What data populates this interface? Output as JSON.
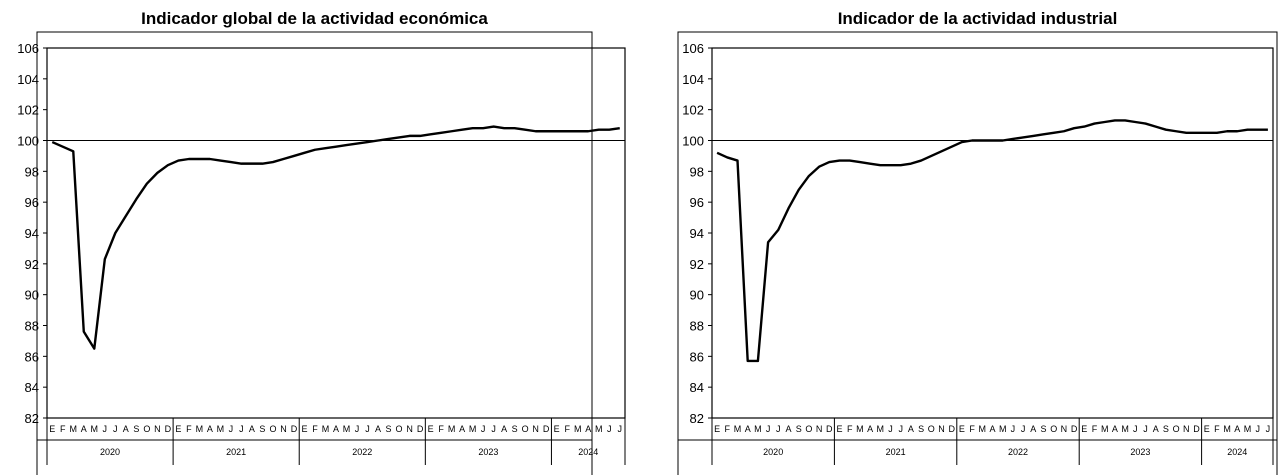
{
  "chart_data": [
    {
      "type": "line",
      "title": "Indicador global de la actividad económica",
      "xlabel": "",
      "ylabel": "",
      "ylim": [
        82,
        106
      ],
      "yticks": [
        "106",
        "104",
        "102",
        "100",
        "98",
        "96",
        "94",
        "92",
        "90",
        "88",
        "86",
        "84",
        "82"
      ],
      "reference_line": 100,
      "grid": false,
      "months": [
        "E",
        "F",
        "M",
        "A",
        "M",
        "J",
        "J",
        "A",
        "S",
        "O",
        "N",
        "D",
        "E",
        "F",
        "M",
        "A",
        "M",
        "J",
        "J",
        "A",
        "S",
        "O",
        "N",
        "D",
        "E",
        "F",
        "M",
        "A",
        "M",
        "J",
        "J",
        "A",
        "S",
        "O",
        "N",
        "D",
        "E",
        "F",
        "M",
        "A",
        "M",
        "J",
        "J",
        "A",
        "S",
        "O",
        "N",
        "D",
        "E",
        "F",
        "M",
        "A",
        "M",
        "J",
        "J"
      ],
      "years": [
        {
          "label": "2020",
          "months": 12
        },
        {
          "label": "2021",
          "months": 12
        },
        {
          "label": "2022",
          "months": 12
        },
        {
          "label": "2023",
          "months": 12
        },
        {
          "label": "2024",
          "months": 7
        }
      ],
      "values": [
        99.9,
        99.6,
        99.3,
        87.6,
        86.5,
        92.3,
        94.0,
        95.1,
        96.2,
        97.2,
        97.9,
        98.4,
        98.7,
        98.8,
        98.8,
        98.8,
        98.7,
        98.6,
        98.5,
        98.5,
        98.5,
        98.6,
        98.8,
        99.0,
        99.2,
        99.4,
        99.5,
        99.6,
        99.7,
        99.8,
        99.9,
        100.0,
        100.1,
        100.2,
        100.3,
        100.3,
        100.4,
        100.5,
        100.6,
        100.7,
        100.8,
        100.8,
        100.9,
        100.8,
        100.8,
        100.7,
        100.6,
        100.6,
        100.6,
        100.6,
        100.6,
        100.6,
        100.7,
        100.7,
        100.8
      ]
    },
    {
      "type": "line",
      "title": "Indicador de la actividad industrial",
      "xlabel": "",
      "ylabel": "",
      "ylim": [
        82,
        106
      ],
      "yticks": [
        "106",
        "104",
        "102",
        "100",
        "98",
        "96",
        "94",
        "92",
        "90",
        "88",
        "86",
        "84",
        "82"
      ],
      "reference_line": 100,
      "grid": false,
      "months": [
        "E",
        "F",
        "M",
        "A",
        "M",
        "J",
        "J",
        "A",
        "S",
        "O",
        "N",
        "D",
        "E",
        "F",
        "M",
        "A",
        "M",
        "J",
        "J",
        "A",
        "S",
        "O",
        "N",
        "D",
        "E",
        "F",
        "M",
        "A",
        "M",
        "J",
        "J",
        "A",
        "S",
        "O",
        "N",
        "D",
        "E",
        "F",
        "M",
        "A",
        "M",
        "J",
        "J",
        "A",
        "S",
        "O",
        "N",
        "D",
        "E",
        "F",
        "M",
        "A",
        "M",
        "J",
        "J"
      ],
      "years": [
        {
          "label": "2020",
          "months": 12
        },
        {
          "label": "2021",
          "months": 12
        },
        {
          "label": "2022",
          "months": 12
        },
        {
          "label": "2023",
          "months": 12
        },
        {
          "label": "2024",
          "months": 7
        }
      ],
      "values": [
        99.2,
        98.9,
        98.7,
        85.7,
        85.7,
        93.4,
        94.2,
        95.6,
        96.8,
        97.7,
        98.3,
        98.6,
        98.7,
        98.7,
        98.6,
        98.5,
        98.4,
        98.4,
        98.4,
        98.5,
        98.7,
        99.0,
        99.3,
        99.6,
        99.9,
        100.0,
        100.0,
        100.0,
        100.0,
        100.1,
        100.2,
        100.3,
        100.4,
        100.5,
        100.6,
        100.8,
        100.9,
        101.1,
        101.2,
        101.3,
        101.3,
        101.2,
        101.1,
        100.9,
        100.7,
        100.6,
        100.5,
        100.5,
        100.5,
        100.5,
        100.6,
        100.6,
        100.7,
        100.7,
        100.7
      ]
    }
  ]
}
